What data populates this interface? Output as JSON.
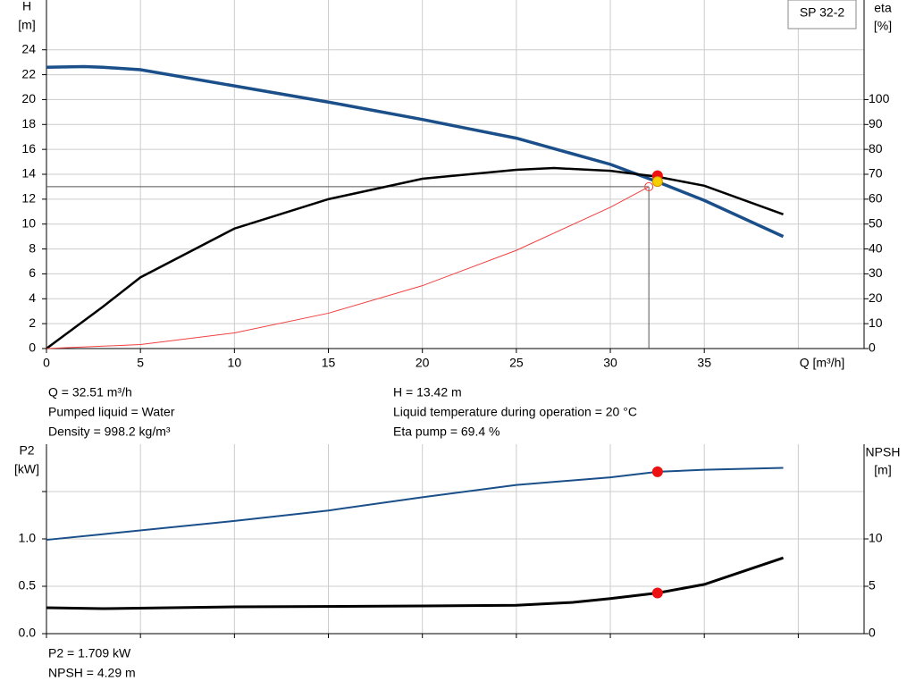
{
  "chart_data": [
    {
      "type": "line",
      "title": "SP 32-2",
      "xlabel": "Q [m³/h]",
      "ylabel": [
        "H",
        "[m]"
      ],
      "y2label": [
        "eta",
        "[%]"
      ],
      "xlim": [
        0,
        43.5
      ],
      "xticks": [
        0,
        5,
        10,
        15,
        20,
        25,
        30,
        35
      ],
      "gridx": [
        0,
        5,
        10,
        15,
        20,
        25,
        30,
        35,
        40
      ],
      "ylim": [
        0,
        28
      ],
      "yticks": [
        0,
        2,
        4,
        6,
        8,
        10,
        12,
        14,
        16,
        18,
        20,
        22,
        24
      ],
      "y2lim": [
        0,
        140
      ],
      "y2ticks": [
        0,
        10,
        20,
        30,
        40,
        50,
        60,
        70,
        80,
        90,
        100
      ],
      "grid": true,
      "show_xtick_labels": true,
      "series": [
        {
          "color": "#1a4f8a",
          "width": 3.5,
          "x": [
            0,
            2,
            3,
            5,
            10,
            15,
            20,
            25,
            30,
            32.5,
            35,
            39.2
          ],
          "values": [
            22.6,
            22.65,
            22.6,
            22.4,
            21.1,
            19.8,
            18.4,
            16.9,
            14.8,
            13.4,
            11.9,
            9.0
          ]
        },
        {
          "color": "#000000",
          "width": 2.5,
          "axis": "y2",
          "x": [
            0,
            3,
            5,
            10,
            15,
            20,
            25,
            27,
            30,
            32.5,
            35,
            39.2
          ],
          "values": [
            0,
            16.8,
            28.6,
            48.2,
            60,
            68.2,
            71.8,
            72.5,
            71.4,
            69,
            65.4,
            53.9
          ]
        },
        {
          "color": "#f04040",
          "width": 1,
          "x": [
            0,
            5,
            10,
            15,
            20,
            25,
            30,
            32.05
          ],
          "values": [
            0,
            0.32,
            1.26,
            2.84,
            5.05,
            7.89,
            11.35,
            13.0
          ]
        }
      ],
      "duty_point": {
        "x": 32.05,
        "y": 13.0
      },
      "markers": [
        {
          "x": 32.51,
          "y": 69.4,
          "axis": "y2",
          "color": "#ee1111"
        },
        {
          "x": 32.51,
          "y": 13.42,
          "color": "#f5d000"
        }
      ],
      "annotations": [
        [
          "Q = 32.51 m³/h",
          "Pumped liquid = Water",
          "Density = 998.2 kg/m³"
        ],
        [
          "H = 13.42 m",
          "Liquid temperature during operation = 20 °C",
          "Eta pump = 69.4 %"
        ]
      ]
    },
    {
      "type": "line",
      "ylabel": [
        "P2",
        "[kW]"
      ],
      "y2label": [
        "NPSH",
        "[m]"
      ],
      "xlim": [
        0,
        43.5
      ],
      "xticks": [
        0,
        5,
        10,
        15,
        20,
        25,
        30,
        35,
        40
      ],
      "ylim": [
        0,
        2
      ],
      "yticks": [
        {
          "value": 0,
          "label": "0.0"
        },
        {
          "value": 0.5,
          "label": "0.5"
        },
        {
          "value": 1,
          "label": "1.0"
        },
        {
          "value": 1.5,
          "label": null
        }
      ],
      "y2lim": [
        0,
        20
      ],
      "y2ticks": [
        0,
        5,
        10
      ],
      "grid": true,
      "show_xtick_labels": false,
      "series": [
        {
          "color": "#1a4f8a",
          "width": 2,
          "x": [
            0,
            3,
            10,
            15,
            20,
            25,
            30,
            32.51,
            35,
            39.2
          ],
          "values": [
            0.99,
            1.05,
            1.19,
            1.3,
            1.44,
            1.57,
            1.65,
            1.709,
            1.73,
            1.75
          ]
        },
        {
          "color": "#000000",
          "width": 3,
          "axis": "y2",
          "x": [
            0,
            3,
            10,
            20,
            25,
            28,
            30,
            32.51,
            35,
            39.2
          ],
          "values": [
            2.74,
            2.64,
            2.83,
            2.92,
            3.0,
            3.3,
            3.7,
            4.29,
            5.2,
            8.0
          ]
        }
      ],
      "markers": [
        {
          "x": 32.51,
          "y": 1.709,
          "color": "#ee1111"
        },
        {
          "x": 32.51,
          "y": 4.29,
          "axis": "y2",
          "color": "#ee1111"
        }
      ],
      "annotations": [
        [
          "P2 = 1.709 kW",
          "NPSH = 4.29 m"
        ]
      ]
    }
  ]
}
